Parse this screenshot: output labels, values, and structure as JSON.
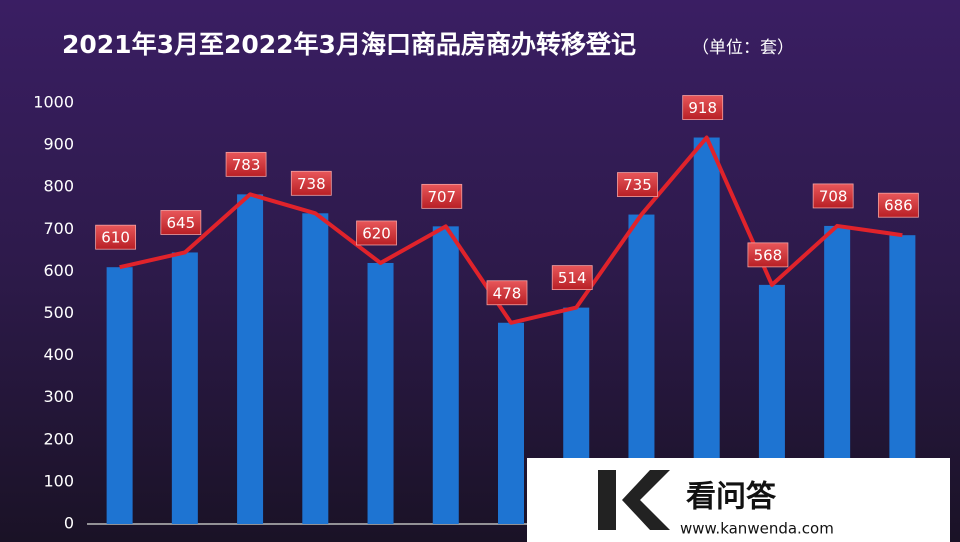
{
  "chart_data": {
    "type": "bar",
    "title": "2021年3月至2022年3月海口商品房商办转移登记",
    "subtitle": "（单位：套）",
    "values": [
      610,
      645,
      783,
      738,
      620,
      707,
      478,
      514,
      735,
      918,
      568,
      708,
      686
    ],
    "color": "#1e74d2",
    "line": true,
    "line_color": "#e0232b",
    "ylim": [
      0,
      1000
    ],
    "yticks": [
      0,
      100,
      200,
      300,
      400,
      500,
      600,
      700,
      800,
      900,
      1000
    ],
    "grid": false
  },
  "watermark": {
    "name": "看问答",
    "url": "www.kanwenda.com"
  }
}
